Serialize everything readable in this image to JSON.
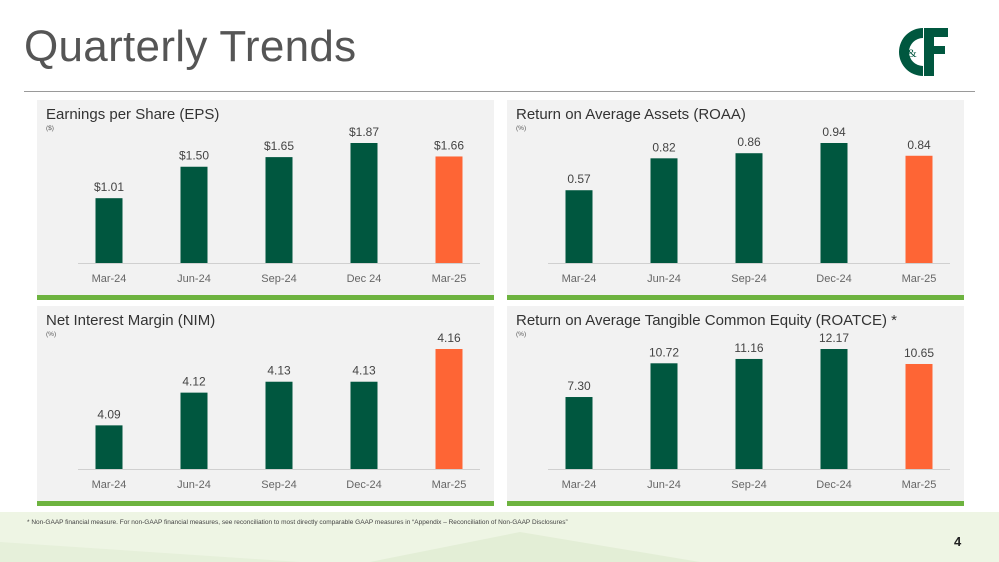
{
  "slide": {
    "title": "Quarterly Trends",
    "footnote": "* Non-GAAP financial measure.  For non-GAAP financial measures, see reconciliation to most directly comparable GAAP measures in “Appendix – Reconciliation of Non-GAAP Disclosures”",
    "page_number": "4",
    "logo_text": "C&F"
  },
  "colors": {
    "bar_green": "#00573f",
    "bar_highlight": "#fe6535",
    "accent_underline": "#6db33f",
    "panel_bg": "#f2f2f2"
  },
  "chart_data": [
    {
      "id": "eps",
      "type": "bar",
      "title": "Earnings per Share (EPS)",
      "unit": "($)",
      "categories": [
        "Mar-24",
        "Jun-24",
        "Sep-24",
        "Dec 24",
        "Mar-25"
      ],
      "values": [
        1.01,
        1.5,
        1.65,
        1.87,
        1.66
      ],
      "labels": [
        "$1.01",
        "$1.50",
        "$1.65",
        "$1.87",
        "$1.66"
      ],
      "highlight_index": 4,
      "ylim": [
        0,
        1.87
      ]
    },
    {
      "id": "roaa",
      "type": "bar",
      "title": "Return on Average Assets (ROAA)",
      "unit": "(%)",
      "categories": [
        "Mar-24",
        "Jun-24",
        "Sep-24",
        "Dec-24",
        "Mar-25"
      ],
      "values": [
        0.57,
        0.82,
        0.86,
        0.94,
        0.84
      ],
      "labels": [
        "0.57",
        "0.82",
        "0.86",
        "0.94",
        "0.84"
      ],
      "highlight_index": 4,
      "ylim": [
        0,
        0.94
      ]
    },
    {
      "id": "nim",
      "type": "bar",
      "title": "Net Interest Margin (NIM)",
      "unit": "(%)",
      "categories": [
        "Mar-24",
        "Jun-24",
        "Sep-24",
        "Dec-24",
        "Mar-25"
      ],
      "values": [
        4.09,
        4.12,
        4.13,
        4.13,
        4.16
      ],
      "labels": [
        "4.09",
        "4.12",
        "4.13",
        "4.13",
        "4.16"
      ],
      "highlight_index": 4,
      "ylim": [
        4.05,
        4.16
      ]
    },
    {
      "id": "roatce",
      "type": "bar",
      "title": "Return on Average Tangible Common Equity (ROATCE) *",
      "unit": "(%)",
      "categories": [
        "Mar-24",
        "Jun-24",
        "Sep-24",
        "Dec-24",
        "Mar-25"
      ],
      "values": [
        7.3,
        10.72,
        11.16,
        12.17,
        10.65
      ],
      "labels": [
        "7.30",
        "10.72",
        "11.16",
        "12.17",
        "10.65"
      ],
      "highlight_index": 4,
      "ylim": [
        0,
        12.17
      ]
    }
  ]
}
